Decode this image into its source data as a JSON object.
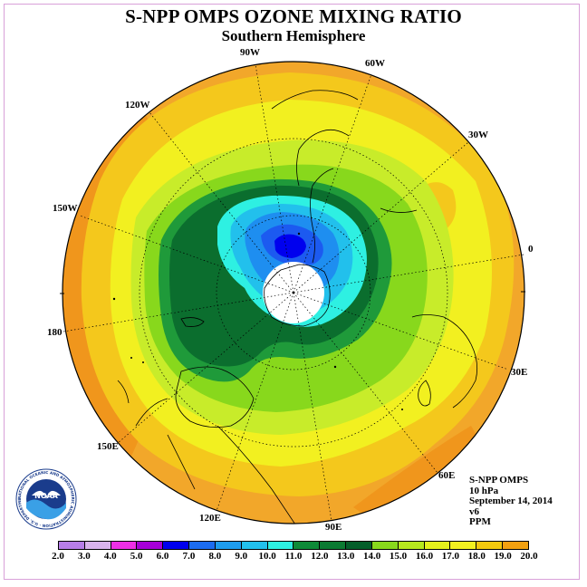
{
  "title": "S-NPP OMPS OZONE MIXING RATIO",
  "subtitle": "Southern Hemisphere",
  "longitude_labels": [
    {
      "text": "90W"
    },
    {
      "text": "60W"
    },
    {
      "text": "120W"
    },
    {
      "text": "30W"
    },
    {
      "text": "150W"
    },
    {
      "text": "0"
    },
    {
      "text": "180"
    },
    {
      "text": "30E"
    },
    {
      "text": "150E"
    },
    {
      "text": "60E"
    },
    {
      "text": "120E"
    },
    {
      "text": "90E"
    }
  ],
  "info": {
    "instrument": "S-NPP OMPS",
    "level": "10 hPa",
    "date": "September 14, 2014",
    "version": "v6",
    "units": "PPM"
  },
  "logo": {
    "text": "NOAA",
    "ring_text": "NATIONAL OCEANIC AND ATMOSPHERIC ADMINISTRATION · U.S. DEPARTMENT OF COMMERCE"
  },
  "colorbar": {
    "colors": [
      "#b77ee8",
      "#d9b3ec",
      "#ee2fe6",
      "#a600d8",
      "#0000ee",
      "#1c6cf0",
      "#1e9cee",
      "#22c0ec",
      "#2ef0e2",
      "#0e8a38",
      "#0b7a32",
      "#045e2a",
      "#88d81c",
      "#b6e81e",
      "#e4f01c",
      "#f2f020",
      "#f2c80e",
      "#f2a010",
      "#f08010",
      "#f05a10",
      "#e80e0e",
      "#8a5a34"
    ],
    "ticks": [
      "2.0",
      "3.0",
      "4.0",
      "5.0",
      "6.0",
      "7.0",
      "8.0",
      "9.0",
      "10.0",
      "11.0",
      "12.0",
      "13.0",
      "14.0",
      "15.0",
      "16.0",
      "17.0",
      "18.0",
      "19.0",
      "20.0"
    ]
  },
  "map_colors": {
    "outer": "#f2a72a",
    "band_15": "#f4c81c",
    "band_14": "#f2f020",
    "band_13": "#c8ec2a",
    "band_12": "#88d81c",
    "band_11": "#1f9a3a",
    "band_10": "#0b6e2e",
    "band_9": "#2ef0e2",
    "band_8": "#22c0ec",
    "band_7": "#1e8ef0",
    "band_6": "#1c5af0",
    "band_5": "#0000ee",
    "missing": "#ffffff"
  }
}
